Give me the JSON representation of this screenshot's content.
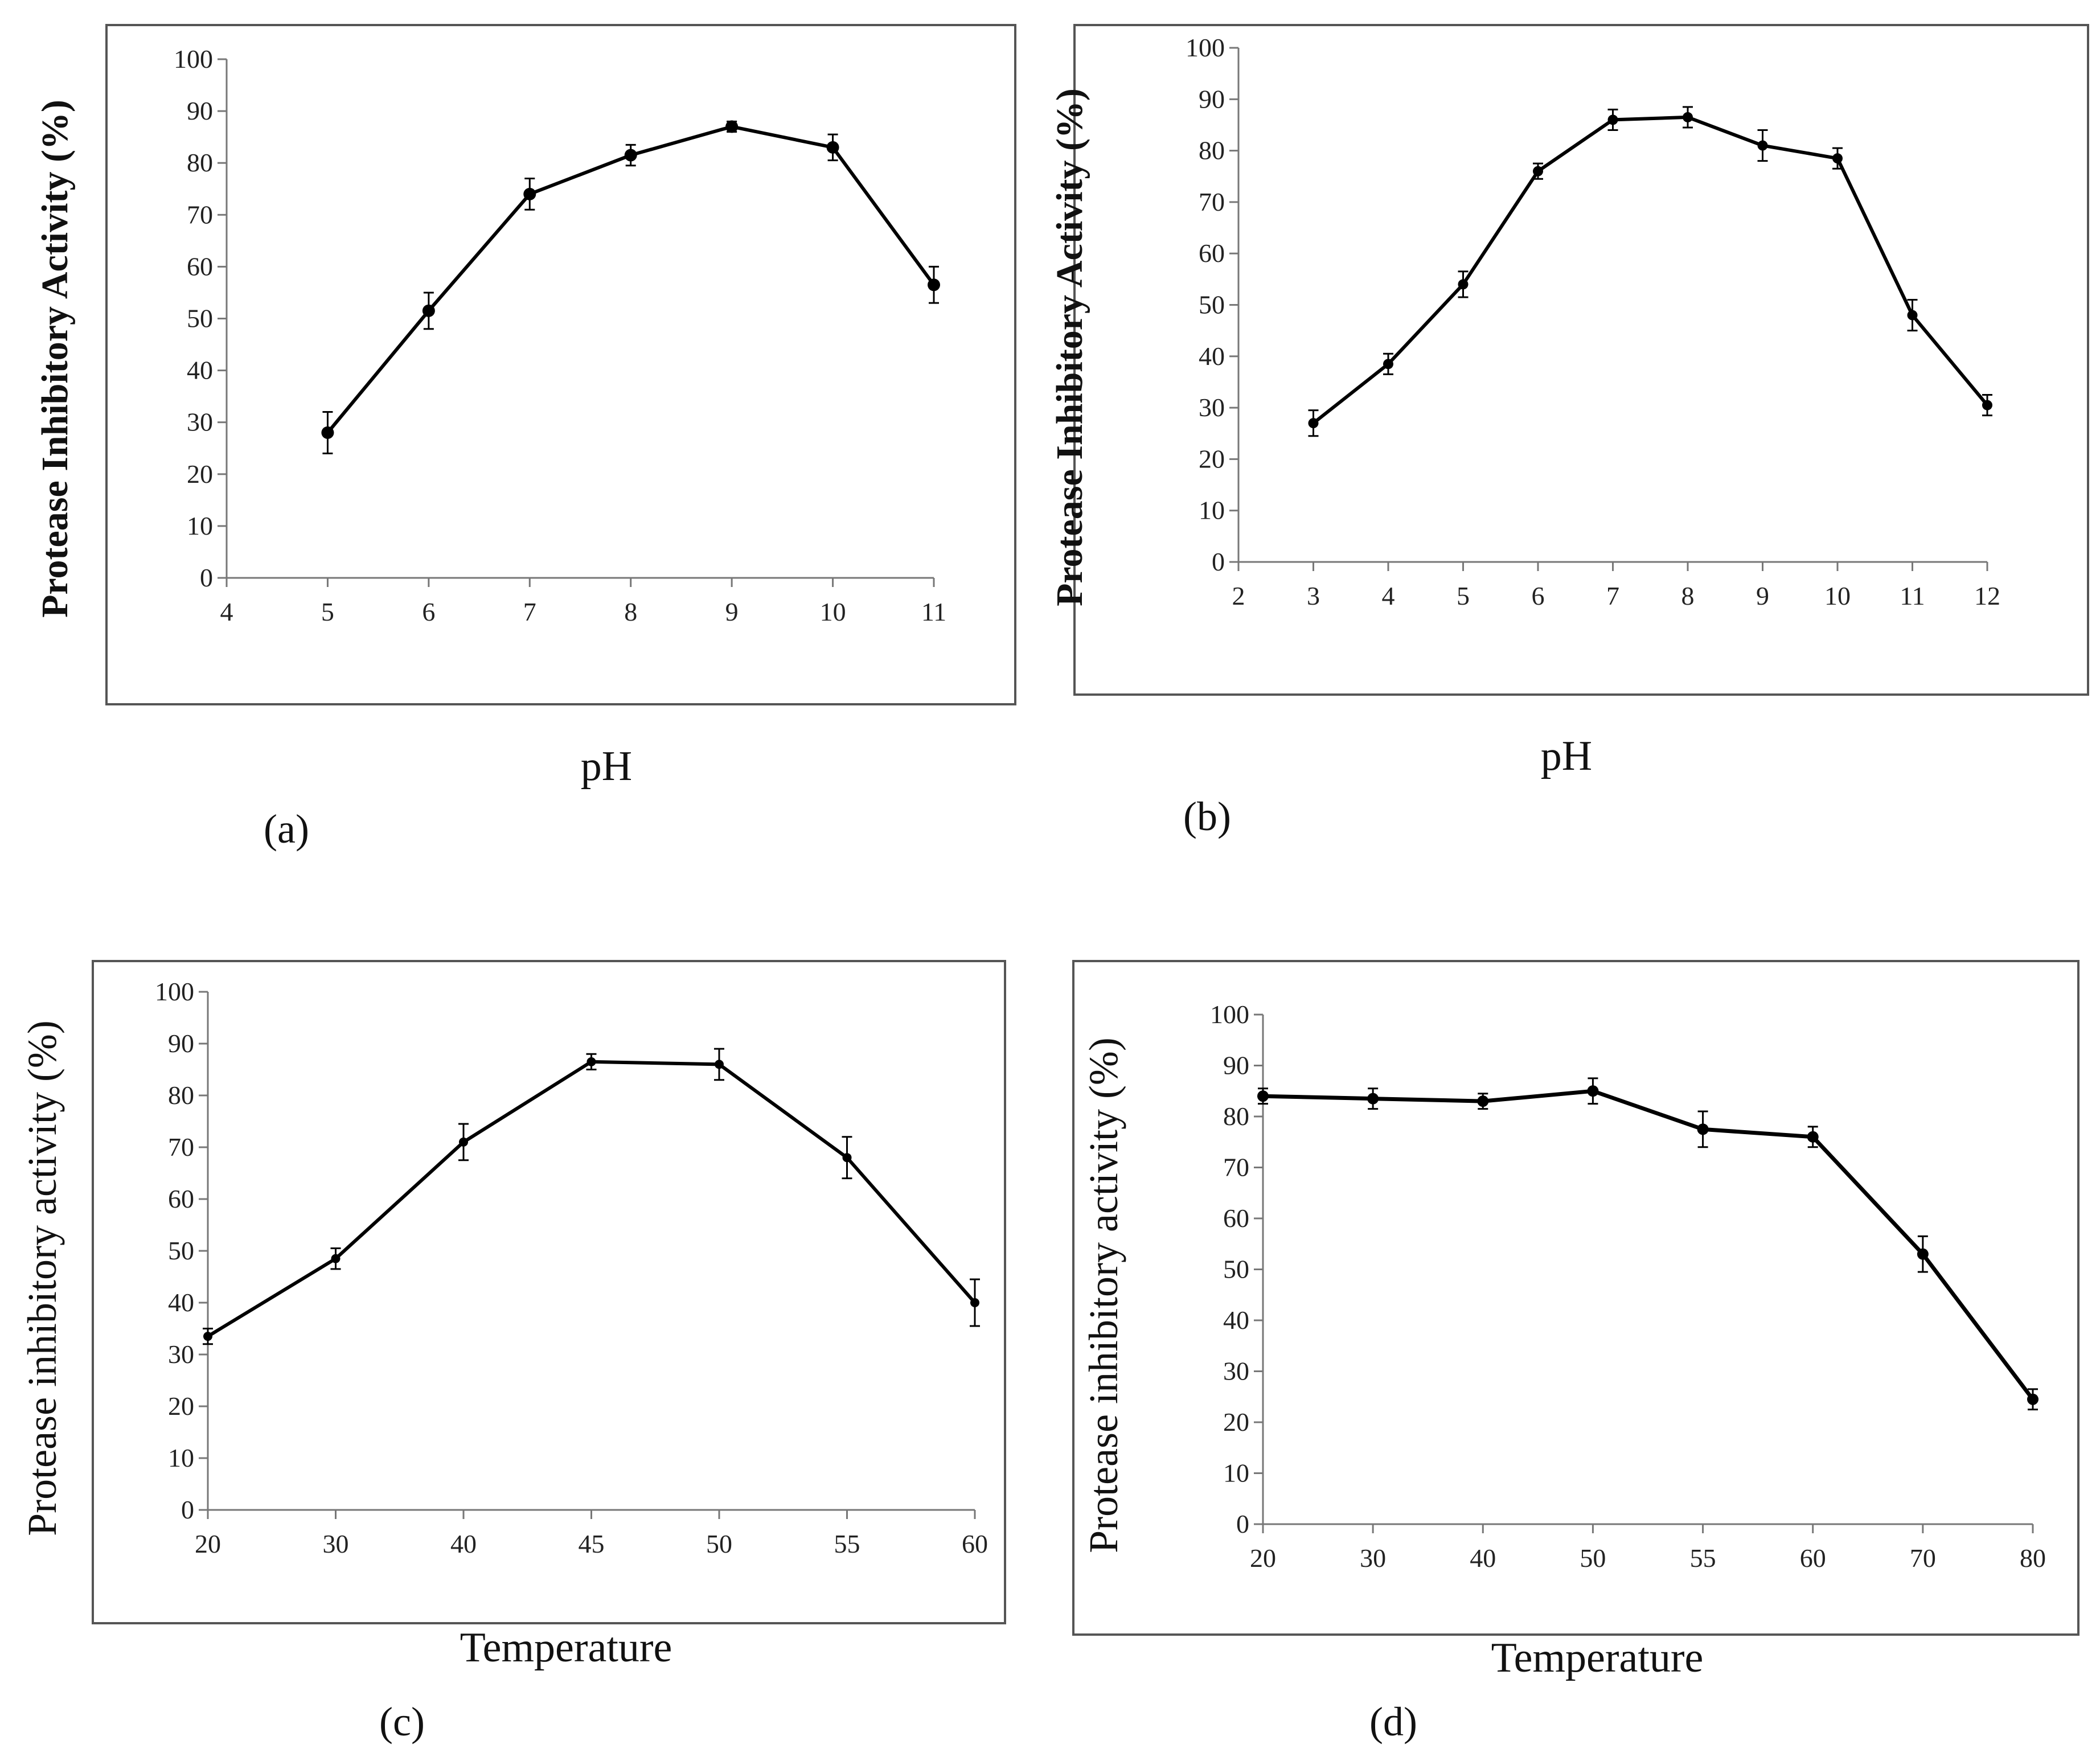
{
  "chart_data": [
    {
      "type": "line",
      "panel": "(a)",
      "x": [
        5,
        6,
        7,
        8,
        9,
        10,
        11
      ],
      "values": [
        28,
        51.5,
        74,
        81.5,
        87,
        83,
        56.5
      ],
      "errors": [
        4,
        3.5,
        3,
        2,
        1,
        2.5,
        3.5
      ],
      "xticks": [
        "4",
        "5",
        "6",
        "7",
        "8",
        "9",
        "10",
        "11"
      ],
      "xlim": [
        4,
        11
      ],
      "yticks": [
        "0",
        "10",
        "20",
        "30",
        "40",
        "50",
        "60",
        "70",
        "80",
        "90",
        "100"
      ],
      "ylim": [
        0,
        100
      ],
      "xlabel": "pH",
      "ylabel": "Protease Inhibitory Activity (%)"
    },
    {
      "type": "line",
      "panel": "(b)",
      "x": [
        3,
        4,
        5,
        6,
        7,
        8,
        9,
        10,
        11,
        12
      ],
      "values": [
        27,
        38.5,
        54,
        76,
        86,
        86.5,
        81,
        78.5,
        48,
        30.5
      ],
      "errors": [
        2.5,
        2,
        2.5,
        1.5,
        2,
        2,
        3,
        2,
        3,
        2
      ],
      "xticks": [
        "2",
        "3",
        "4",
        "5",
        "6",
        "7",
        "8",
        "9",
        "10",
        "11",
        "12"
      ],
      "xlim": [
        2,
        12
      ],
      "yticks": [
        "0",
        "10",
        "20",
        "30",
        "40",
        "50",
        "60",
        "70",
        "80",
        "90",
        "100"
      ],
      "ylim": [
        0,
        100
      ],
      "xlabel": "pH",
      "ylabel": "Protease Inhibitory Activity (%)"
    },
    {
      "type": "line",
      "panel": "(c)",
      "x": [
        20,
        30,
        40,
        45,
        50,
        55,
        60
      ],
      "values": [
        33.5,
        48.5,
        71,
        86.5,
        86,
        68,
        40
      ],
      "errors": [
        1.5,
        2,
        3.5,
        1.5,
        3,
        4,
        4.5
      ],
      "xticks": [
        "20",
        "30",
        "40",
        "45",
        "50",
        "55",
        "60"
      ],
      "yticks": [
        "0",
        "10",
        "20",
        "30",
        "40",
        "50",
        "60",
        "70",
        "80",
        "90",
        "100"
      ],
      "ylim": [
        0,
        100
      ],
      "xlabel": "Temperature",
      "ylabel": "Protease inhibitory activity (%)"
    },
    {
      "type": "line",
      "panel": "(d)",
      "x": [
        20,
        30,
        40,
        50,
        55,
        60,
        70,
        80
      ],
      "values": [
        84,
        83.5,
        83,
        85,
        77.5,
        76,
        53,
        24.5
      ],
      "errors": [
        1.5,
        2,
        1.5,
        2.5,
        3.5,
        2,
        3.5,
        2
      ],
      "xticks": [
        "20",
        "30",
        "40",
        "50",
        "55",
        "60",
        "70",
        "80"
      ],
      "yticks": [
        "0",
        "10",
        "20",
        "30",
        "40",
        "50",
        "60",
        "70",
        "80",
        "90",
        "100"
      ],
      "ylim": [
        0,
        100
      ],
      "xlabel": "Temperature",
      "ylabel": "Protease inhibitory activity (%)"
    }
  ]
}
